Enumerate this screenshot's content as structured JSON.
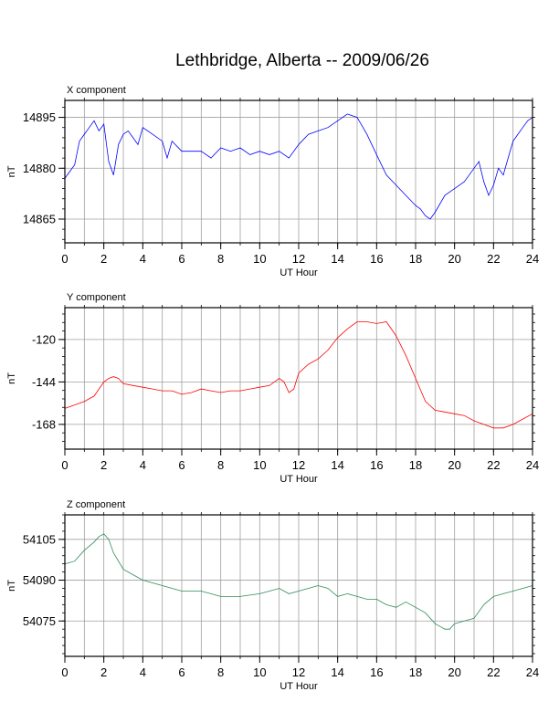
{
  "title": "Lethbridge, Alberta -- 2009/06/26",
  "chart_data": [
    {
      "type": "line",
      "panel_title": "X component",
      "xlabel": "UT Hour",
      "ylabel": "nT",
      "xlim": [
        0,
        24
      ],
      "ylim": [
        14858,
        14900
      ],
      "x_ticks": [
        0,
        2,
        4,
        6,
        8,
        10,
        12,
        14,
        16,
        18,
        20,
        22,
        24
      ],
      "y_ticks": [
        14865,
        14880,
        14895
      ],
      "grid": true,
      "color": "#0000ff",
      "series": [
        {
          "x": [
            0,
            0.25,
            0.5,
            0.75,
            1,
            1.25,
            1.5,
            1.75,
            2,
            2.25,
            2.5,
            2.75,
            3,
            3.25,
            3.5,
            3.75,
            4,
            4.5,
            5,
            5.25,
            5.5,
            6,
            6.5,
            7,
            7.5,
            8,
            8.5,
            9,
            9.5,
            10,
            10.5,
            11,
            11.5,
            12,
            12.5,
            13,
            13.5,
            14,
            14.5,
            15,
            15.5,
            16,
            16.5,
            17,
            17.5,
            18,
            18.25,
            18.5,
            18.75,
            19,
            19.5,
            20,
            20.5,
            20.75,
            21,
            21.25,
            21.5,
            21.75,
            22,
            22.25,
            22.5,
            22.75,
            23,
            23.25,
            23.5,
            23.75,
            24
          ],
          "y": [
            14877,
            14879,
            14881,
            14888,
            14890,
            14892,
            14894,
            14891,
            14893,
            14882,
            14878,
            14887,
            14890,
            14891,
            14889,
            14887,
            14892,
            14890,
            14888,
            14883,
            14888,
            14885,
            14885,
            14885,
            14883,
            14886,
            14885,
            14886,
            14884,
            14885,
            14884,
            14885,
            14883,
            14887,
            14890,
            14891,
            14892,
            14894,
            14896,
            14895,
            14890,
            14884,
            14878,
            14875,
            14872,
            14869,
            14868,
            14866,
            14865,
            14867,
            14872,
            14874,
            14876,
            14878,
            14880,
            14882,
            14876,
            14872,
            14875,
            14880,
            14878,
            14883,
            14888,
            14890,
            14892,
            14894,
            14895
          ]
        }
      ]
    },
    {
      "type": "line",
      "panel_title": "Y component",
      "xlabel": "UT Hour",
      "ylabel": "nT",
      "xlim": [
        0,
        24
      ],
      "ylim": [
        -182,
        -102
      ],
      "x_ticks": [
        0,
        2,
        4,
        6,
        8,
        10,
        12,
        14,
        16,
        18,
        20,
        22,
        24
      ],
      "y_ticks": [
        -120,
        -144,
        -168
      ],
      "grid": true,
      "color": "#ff0000",
      "series": [
        {
          "x": [
            0,
            0.5,
            1,
            1.5,
            2,
            2.25,
            2.5,
            2.75,
            3,
            3.5,
            4,
            4.5,
            5,
            5.5,
            6,
            6.5,
            7,
            7.5,
            8,
            8.5,
            9,
            9.5,
            10,
            10.5,
            11,
            11.25,
            11.5,
            11.75,
            12,
            12.5,
            13,
            13.5,
            14,
            14.5,
            15,
            15.5,
            16,
            16.5,
            17,
            17.5,
            18,
            18.5,
            19,
            19.5,
            20,
            20.5,
            21,
            21.5,
            22,
            22.5,
            23,
            23.5,
            24
          ],
          "y": [
            -159,
            -157,
            -155,
            -152,
            -144,
            -142,
            -141,
            -142,
            -145,
            -146,
            -147,
            -148,
            -149,
            -149,
            -151,
            -150,
            -148,
            -149,
            -150,
            -149,
            -149,
            -148,
            -147,
            -146,
            -142,
            -144,
            -150,
            -148,
            -139,
            -134,
            -131,
            -126,
            -119,
            -114,
            -110,
            -110,
            -111,
            -110,
            -118,
            -129,
            -142,
            -155,
            -160,
            -161,
            -162,
            -163,
            -166,
            -168,
            -170,
            -170,
            -168,
            -165,
            -162
          ]
        }
      ]
    },
    {
      "type": "line",
      "panel_title": "Z component",
      "xlabel": "UT Hour",
      "ylabel": "nT",
      "xlim": [
        0,
        24
      ],
      "ylim": [
        54062,
        54114
      ],
      "x_ticks": [
        0,
        2,
        4,
        6,
        8,
        10,
        12,
        14,
        16,
        18,
        20,
        22,
        24
      ],
      "y_ticks": [
        54105,
        54090,
        54075
      ],
      "grid": true,
      "color": "#2e8b57",
      "series": [
        {
          "x": [
            0,
            0.5,
            1,
            1.5,
            1.75,
            2,
            2.25,
            2.5,
            3,
            3.5,
            4,
            5,
            6,
            7,
            8,
            9,
            10,
            10.5,
            11,
            11.5,
            12,
            12.5,
            13,
            13.5,
            14,
            14.5,
            15,
            15.5,
            16,
            16.5,
            17,
            17.5,
            18,
            18.5,
            19,
            19.25,
            19.5,
            19.75,
            20,
            20.5,
            21,
            21.5,
            22,
            22.5,
            23,
            23.5,
            24
          ],
          "y": [
            54096,
            54097,
            54101,
            54104,
            54106,
            54107,
            54105,
            54100,
            54094,
            54092,
            54090,
            54088,
            54086,
            54086,
            54084,
            54084,
            54085,
            54086,
            54087,
            54085,
            54086,
            54087,
            54088,
            54087,
            54084,
            54085,
            54084,
            54083,
            54083,
            54081,
            54080,
            54082,
            54080,
            54078,
            54074,
            54073,
            54072,
            54072,
            54074,
            54075,
            54076,
            54081,
            54084,
            54085,
            54086,
            54087,
            54088
          ]
        }
      ]
    }
  ]
}
